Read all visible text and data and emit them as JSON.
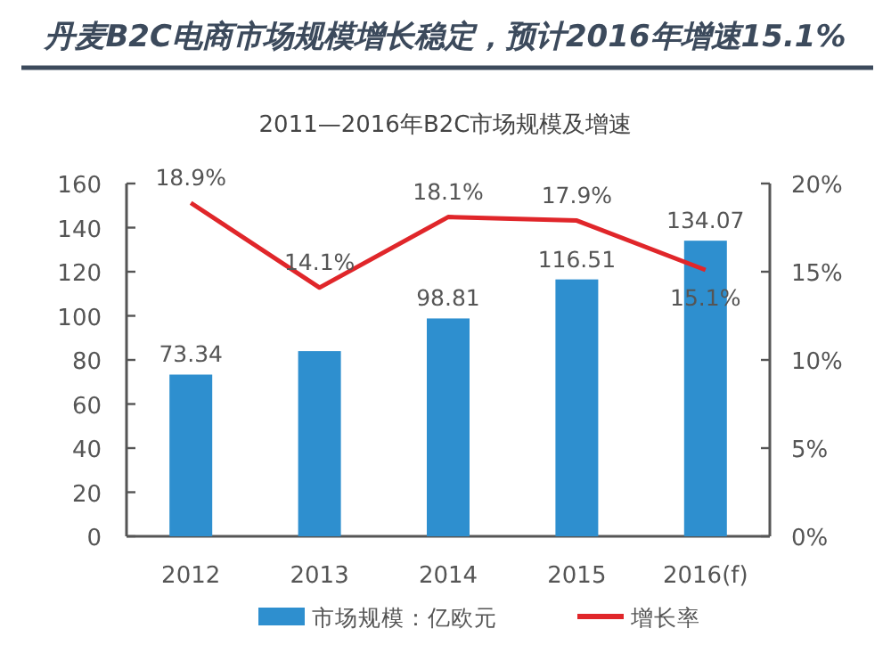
{
  "chart_data": {
    "type": "bar",
    "title": "丹麦B2C电商市场规模增长稳定，预计2016年增速15.1%",
    "subtitle": "2011—2016年B2C市场规模及增速",
    "categories": [
      "2012",
      "2013",
      "2014",
      "2015",
      "2016(f)"
    ],
    "series": [
      {
        "name": "市场规模：亿欧元",
        "color": "#2e8fcf",
        "values": [
          73.34,
          84,
          98.81,
          116.51,
          134.07
        ],
        "value_labels": [
          "73.34",
          null,
          "98.81",
          "116.51",
          "134.07"
        ]
      },
      {
        "name": "增长率",
        "type": "line",
        "axis": "y2",
        "color": "#e0262a",
        "values": [
          18.9,
          14.1,
          18.1,
          17.9,
          15.1
        ],
        "value_labels": [
          "18.9%",
          "14.1%",
          "18.1%",
          "17.9%",
          "15.1%"
        ]
      }
    ],
    "ylim": [
      0,
      160
    ],
    "yticks": [
      0,
      20,
      40,
      60,
      80,
      100,
      120,
      140,
      160
    ],
    "y2lim": [
      0,
      20
    ],
    "y2ticks": [
      {
        "value": 0,
        "label": "0%"
      },
      {
        "value": 5,
        "label": "5%"
      },
      {
        "value": 10,
        "label": "10%"
      },
      {
        "value": 15,
        "label": "15%"
      },
      {
        "value": 20,
        "label": "20%"
      }
    ],
    "legend": "bottom",
    "grid": false
  }
}
